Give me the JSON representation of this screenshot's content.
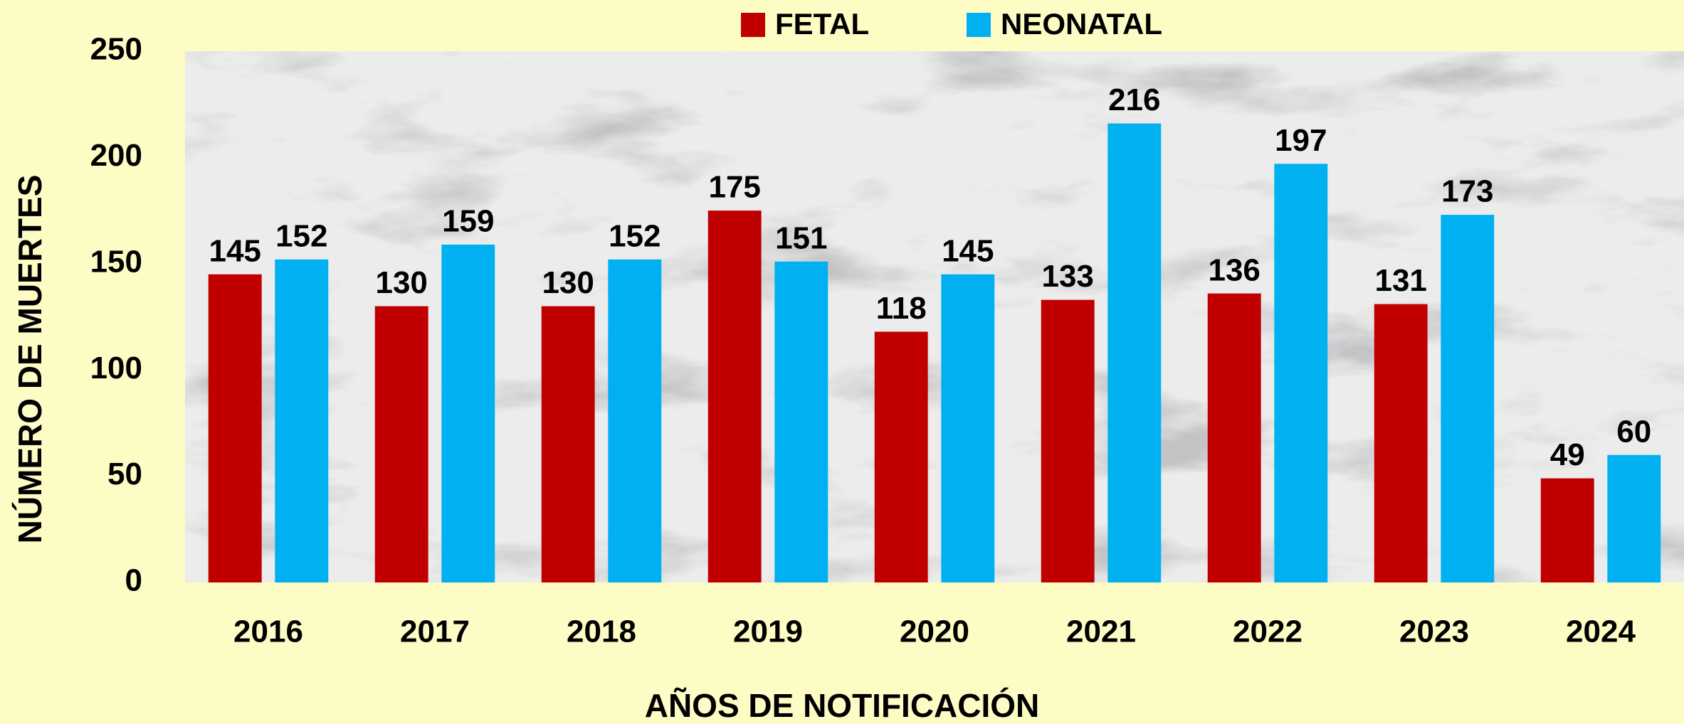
{
  "chart_data": {
    "type": "bar",
    "xlabel": "AÑOS DE NOTIFICACIÓN",
    "ylabel": "NÚMERO DE MUERTES",
    "categories": [
      "2016",
      "2017",
      "2018",
      "2019",
      "2020",
      "2021",
      "2022",
      "2023",
      "2024"
    ],
    "series": [
      {
        "name": "FETAL",
        "color": "#c00000",
        "values": [
          145,
          130,
          130,
          175,
          118,
          133,
          136,
          131,
          49
        ]
      },
      {
        "name": "NEONATAL",
        "color": "#00b0f0",
        "values": [
          152,
          159,
          152,
          151,
          145,
          216,
          197,
          173,
          60
        ]
      }
    ],
    "ylim": [
      0,
      250
    ],
    "yticks": [
      0,
      50,
      100,
      150,
      200,
      250
    ],
    "legend": "top"
  }
}
